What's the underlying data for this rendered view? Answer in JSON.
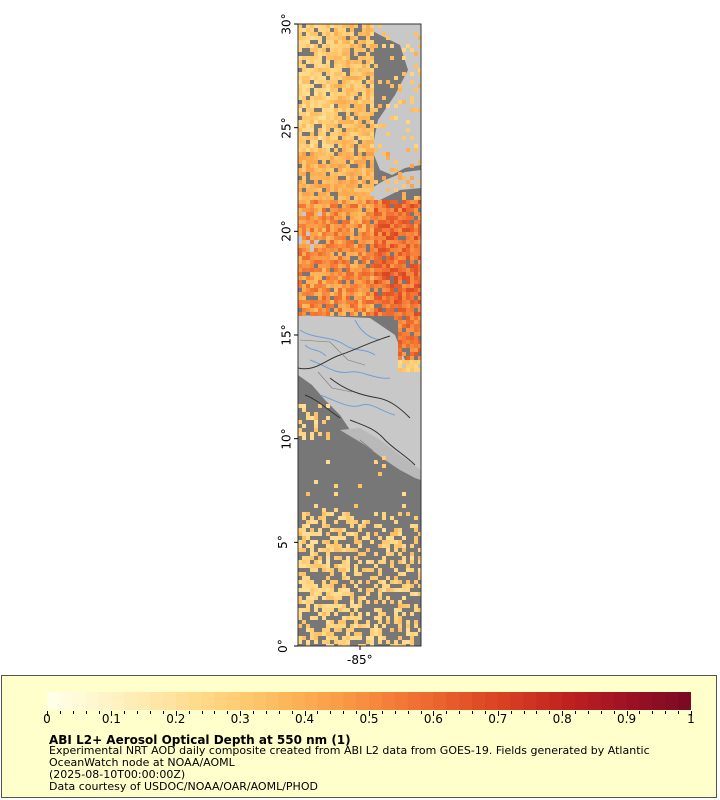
{
  "map": {
    "lat_ticks": [
      "30°",
      "25°",
      "20°",
      "15°",
      "10°",
      "5°",
      "0°"
    ],
    "lon_ticks": [
      "-85°"
    ],
    "colors": {
      "ocean": "#777777",
      "land": "#c8c8c8",
      "rivers": "#6f9fd8",
      "borders": "#333333"
    }
  },
  "legend": {
    "title": "ABI L2+ Aerosol Optical Depth at 550 nm (1)",
    "description": "Experimental NRT AOD daily composite created from ABI L2 data from GOES-19. Fields generated by Atlantic OceanWatch node at NOAA/AOML",
    "date": "(2025-08-10T00:00:00Z)",
    "credit": "Data courtesy of USDOC/NOAA/OAR/AOML/PHOD",
    "scale_min": 0,
    "scale_max": 1,
    "scale_ticks": [
      "0",
      "0.1",
      "0.2",
      "0.3",
      "0.4",
      "0.5",
      "0.6",
      "0.7",
      "0.8",
      "0.9",
      "1"
    ],
    "colors": [
      "#ffffe8",
      "#fff3c4",
      "#ffe3a0",
      "#ffd27a",
      "#fdb85c",
      "#fa9b46",
      "#f47a36",
      "#e65a2a",
      "#d63b22",
      "#be2020",
      "#9e1224",
      "#7d0a25"
    ]
  }
}
